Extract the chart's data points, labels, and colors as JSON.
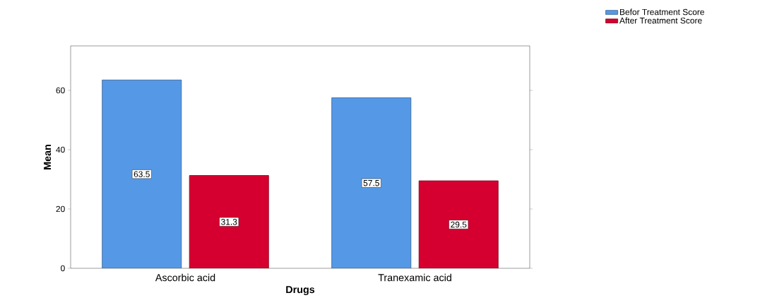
{
  "chart_data": {
    "type": "bar",
    "xlabel": "Drugs",
    "ylabel": "Mean",
    "categories": [
      "Ascorbic acid",
      "Tranexamic acid"
    ],
    "series": [
      {
        "name": "Befor Treatment Score",
        "color": "#5599e6",
        "values": [
          63.5,
          57.5
        ]
      },
      {
        "name": "After Treatment Score",
        "color": "#d5002f",
        "values": [
          31.3,
          29.5
        ]
      }
    ],
    "ylim": [
      0,
      75
    ],
    "yticks": [
      0,
      20,
      40,
      60
    ],
    "data_labels": true,
    "legend": "top right",
    "grid": false
  }
}
